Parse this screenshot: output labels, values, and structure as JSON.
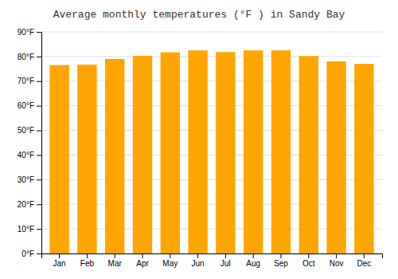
{
  "chart_data": {
    "type": "bar",
    "title": "Average monthly temperatures (°F ) in Sandy Bay",
    "categories": [
      "Jan",
      "Feb",
      "Mar",
      "Apr",
      "May",
      "Jun",
      "Jul",
      "Aug",
      "Sep",
      "Oct",
      "Nov",
      "Dec"
    ],
    "values": [
      76.5,
      76.7,
      79.0,
      80.3,
      81.7,
      82.5,
      81.8,
      82.5,
      82.5,
      80.2,
      78.0,
      77.0
    ],
    "color": "#FFA500",
    "ylim": [
      0,
      90
    ],
    "yticks": [
      {
        "value": 0,
        "label": "0°F"
      },
      {
        "value": 10,
        "label": "10°F"
      },
      {
        "value": 20,
        "label": "20°F"
      },
      {
        "value": 30,
        "label": "30°F"
      },
      {
        "value": 40,
        "label": "40°F"
      },
      {
        "value": 50,
        "label": "50°F"
      },
      {
        "value": 60,
        "label": "60°F"
      },
      {
        "value": 70,
        "label": "70°F"
      },
      {
        "value": 80,
        "label": "80°F"
      },
      {
        "value": 90,
        "label": "90°F"
      }
    ],
    "grid": true
  }
}
